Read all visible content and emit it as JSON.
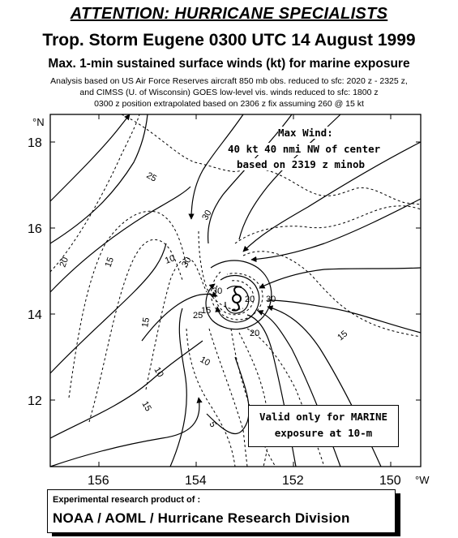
{
  "header": {
    "attention": "ATTENTION: HURRICANE SPECIALISTS",
    "title": "Trop. Storm Eugene 0300 UTC 14 August 1999",
    "subtitle": "Max. 1-min sustained surface winds (kt) for marine exposure"
  },
  "analysis_notes": [
    "Analysis based on US Air Force Reserves aircraft 850 mb obs. reduced to sfc: 2020 z - 2325 z,",
    "and CIMSS (U. of Wisconsin) GOES low-level vis. winds reduced to sfc: 1800 z",
    "0300 z position extrapolated based on 2306 z fix assuming 260 @ 15 kt"
  ],
  "max_wind": {
    "line1": "Max Wind:",
    "line2": "40 kt 40 nmi  NW of center",
    "line3": "based on 2319 z minob"
  },
  "valid_box": {
    "line1": "Valid only for MARINE",
    "line2": "exposure at 10-m"
  },
  "footer": {
    "line1": "Experimental research product of :",
    "line2": "NOAA / AOML / Hurricane Research Division"
  },
  "map": {
    "lat_labels": [
      "18",
      "16",
      "14",
      "12"
    ],
    "lat_unit": "°N",
    "lon_labels": [
      "156",
      "154",
      "152",
      "150"
    ],
    "lon_unit": "°W",
    "center_symbol": "tropical-storm-symbol",
    "isotach_labels": [
      "25",
      "20",
      "15",
      "10",
      "30",
      "30",
      "30",
      "25",
      "20",
      "15",
      "15",
      "10",
      "10",
      "5",
      "15",
      "20",
      "30",
      "15"
    ],
    "lat_range": [
      10.4,
      18.6
    ],
    "lon_range": [
      149.6,
      157.2
    ]
  },
  "colors": {
    "lines": "#000000",
    "background": "#ffffff"
  }
}
